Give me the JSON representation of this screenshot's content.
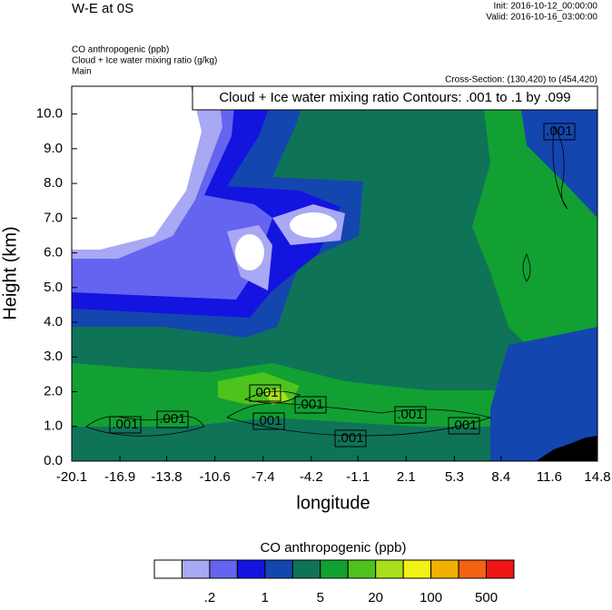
{
  "chart_data": {
    "type": "contour",
    "title": "W-E at 0S",
    "init": "Init: 2016-10-12_00:00:00",
    "valid": "Valid: 2016-10-16_03:00:00",
    "field_line1": "CO anthropogenic   (ppb)",
    "field_line2": "Cloud + Ice water mixing ratio   (g/kg)",
    "field_line3": "Main",
    "cross_section": "Cross-Section: (130,420) to (454,420)",
    "contour_info": "Cloud + Ice water mixing ratio Contours: .001 to .1 by .099",
    "contour_label": ".001",
    "x_label": "longitude",
    "y_label": "Height (km)",
    "xlim": [
      -20.1,
      14.8
    ],
    "xticks": [
      -20.1,
      -16.9,
      -13.8,
      -10.6,
      -7.4,
      -4.2,
      -1.1,
      2.1,
      5.3,
      8.4,
      11.6,
      14.8
    ],
    "ylim": [
      0,
      10.8
    ],
    "yticks": [
      {
        "value": 0,
        "label": "0.0"
      },
      {
        "value": 1,
        "label": "1.0"
      },
      {
        "value": 2,
        "label": "2.0"
      },
      {
        "value": 3,
        "label": "3.0"
      },
      {
        "value": 4,
        "label": "4.0"
      },
      {
        "value": 5,
        "label": "5.0"
      },
      {
        "value": 6,
        "label": "6.0"
      },
      {
        "value": 7,
        "label": "7.0"
      },
      {
        "value": 8,
        "label": "8.0"
      },
      {
        "value": 9,
        "label": "9.0"
      },
      {
        "value": 10,
        "label": "10.0"
      }
    ],
    "colorbar_title": "CO anthropogenic  (ppb)",
    "colors": [
      "#ffffff",
      "#a8a8f4",
      "#6464f0",
      "#1414e0",
      "#1446b0",
      "#0f7358",
      "#12a032",
      "#4ec31e",
      "#a8e01e",
      "#f2f214",
      "#f2b000",
      "#f26414",
      "#f01414"
    ],
    "colorbar_labels": [
      ".2",
      "1",
      "5",
      "20",
      "100",
      "500"
    ]
  }
}
